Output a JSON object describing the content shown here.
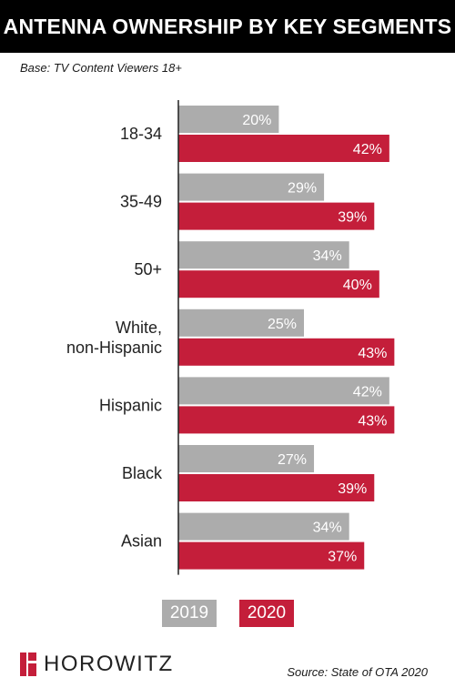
{
  "header": {
    "title": "ANTENNA OWNERSHIP BY KEY SEGMENTS"
  },
  "base_note": "Base: TV Content Viewers 18+",
  "footer": {
    "brand": "HOROWITZ",
    "source": "Source: State of OTA 2020"
  },
  "colors": {
    "2019": "#acacac",
    "2020": "#c41e3a",
    "header_bg": "#000000"
  },
  "chart_data": {
    "type": "bar",
    "orientation": "horizontal",
    "categories": [
      [
        "18-34"
      ],
      [
        "35-49"
      ],
      [
        "50+"
      ],
      [
        "White,",
        "non-Hispanic"
      ],
      [
        "Hispanic"
      ],
      [
        "Black"
      ],
      [
        "Asian"
      ]
    ],
    "series": [
      {
        "name": "2019",
        "values": [
          20,
          29,
          34,
          25,
          42,
          27,
          34
        ],
        "labels": [
          "20%",
          "29%",
          "34%",
          "25%",
          "42%",
          "27%",
          "34%"
        ]
      },
      {
        "name": "2020",
        "values": [
          42,
          39,
          40,
          43,
          43,
          39,
          37
        ],
        "labels": [
          "42%",
          "39%",
          "40%",
          "43%",
          "43%",
          "39%",
          "37%"
        ]
      }
    ],
    "xlim": [
      0,
      45
    ],
    "grid": false,
    "legend_position": "bottom"
  }
}
